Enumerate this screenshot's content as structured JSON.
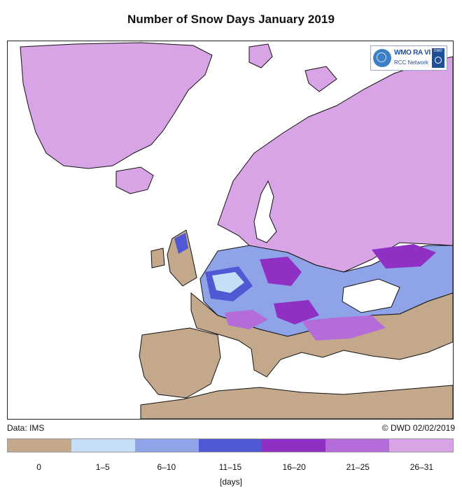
{
  "title": "Number of Snow Days January 2019",
  "data_source": "Data: IMS",
  "copyright": "© DWD 02/02/2019",
  "units": "[days]",
  "logo": {
    "text_primary": "WMO RA VI",
    "text_secondary": "RCC Network",
    "badge_text": "DWD"
  },
  "legend": {
    "bins": [
      {
        "label": "0",
        "color": "#c3a88c"
      },
      {
        "label": "1–5",
        "color": "#c6def6"
      },
      {
        "label": "6–10",
        "color": "#8fa3e8"
      },
      {
        "label": "11–15",
        "color": "#5158d4"
      },
      {
        "label": "16–20",
        "color": "#8f2fc4"
      },
      {
        "label": "21–25",
        "color": "#b46dd8"
      },
      {
        "label": "26–31",
        "color": "#d9a4e6"
      }
    ]
  },
  "colors": {
    "land_no_snow": "#c3a88c",
    "snow_full_month": "#d9a4e6",
    "water": "#ffffff",
    "border": "#111111"
  }
}
